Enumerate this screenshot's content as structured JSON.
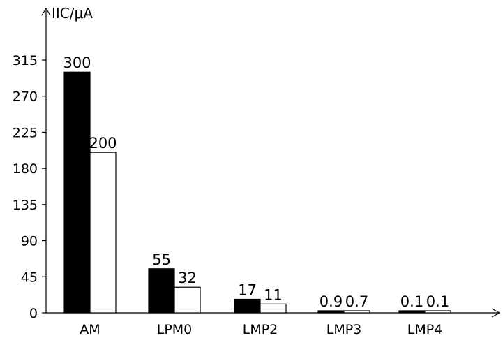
{
  "chart_data": {
    "type": "bar",
    "ylabel": "IIC/μA",
    "xlabel": "",
    "categories": [
      "AM",
      "LPM0",
      "LMP2",
      "LMP3",
      "LMP4"
    ],
    "series": [
      {
        "values": [
          300,
          55,
          17,
          0.9,
          0.1
        ],
        "data_labels": [
          "300",
          "55",
          "17",
          "0.9",
          "0.1"
        ],
        "color": "#000000"
      },
      {
        "values": [
          200,
          32,
          11,
          0.7,
          0.1
        ],
        "data_labels": [
          "200",
          "32",
          "11",
          "0.7",
          "0.1"
        ],
        "color": "#ffffff"
      }
    ],
    "yticks": [
      0,
      45,
      90,
      135,
      180,
      225,
      270,
      315
    ],
    "grid": false,
    "legend": "none"
  }
}
